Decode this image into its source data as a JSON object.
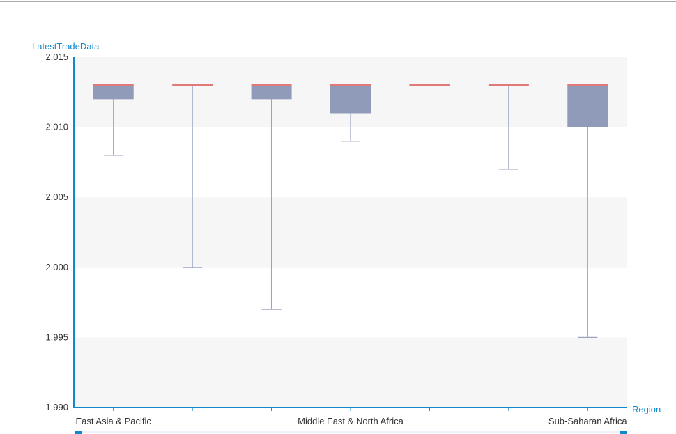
{
  "colors": {
    "axis": "#1188cc",
    "box_fill": "#8f9bb8",
    "whisker": "#9ba3c2",
    "max_line": "#e07a7a",
    "band": "#f6f6f7",
    "top_rule": "#555555"
  },
  "chart_data": {
    "type": "box",
    "ylabel": "LatestTradeData",
    "xlabel": "Region",
    "ylim": [
      1990,
      2015
    ],
    "yticks": [
      1990,
      1995,
      2000,
      2005,
      2010,
      2015
    ],
    "ytick_labels": [
      "1,990",
      "1,995",
      "2,000",
      "2,005",
      "2,010",
      "2,015"
    ],
    "x_tick_labels": [
      {
        "index": 0,
        "label": "East Asia & Pacific"
      },
      {
        "index": 3,
        "label": "Middle East & North Africa"
      },
      {
        "index": 6,
        "label": "Sub-Saharan Africa"
      }
    ],
    "boxes": [
      {
        "min": 2008,
        "q1": 2012,
        "q3": 2013,
        "max": 2013
      },
      {
        "min": 2000,
        "q1": 2013,
        "q3": 2013,
        "max": 2013
      },
      {
        "min": 1997,
        "q1": 2012,
        "q3": 2013,
        "max": 2013
      },
      {
        "min": 2009,
        "q1": 2011,
        "q3": 2013,
        "max": 2013
      },
      {
        "min": 2013,
        "q1": 2013,
        "q3": 2013,
        "max": 2013
      },
      {
        "min": 2007,
        "q1": 2013,
        "q3": 2013,
        "max": 2013
      },
      {
        "min": 1995,
        "q1": 2010,
        "q3": 2013,
        "max": 2013
      }
    ],
    "grid": "alternating horizontal bands"
  }
}
